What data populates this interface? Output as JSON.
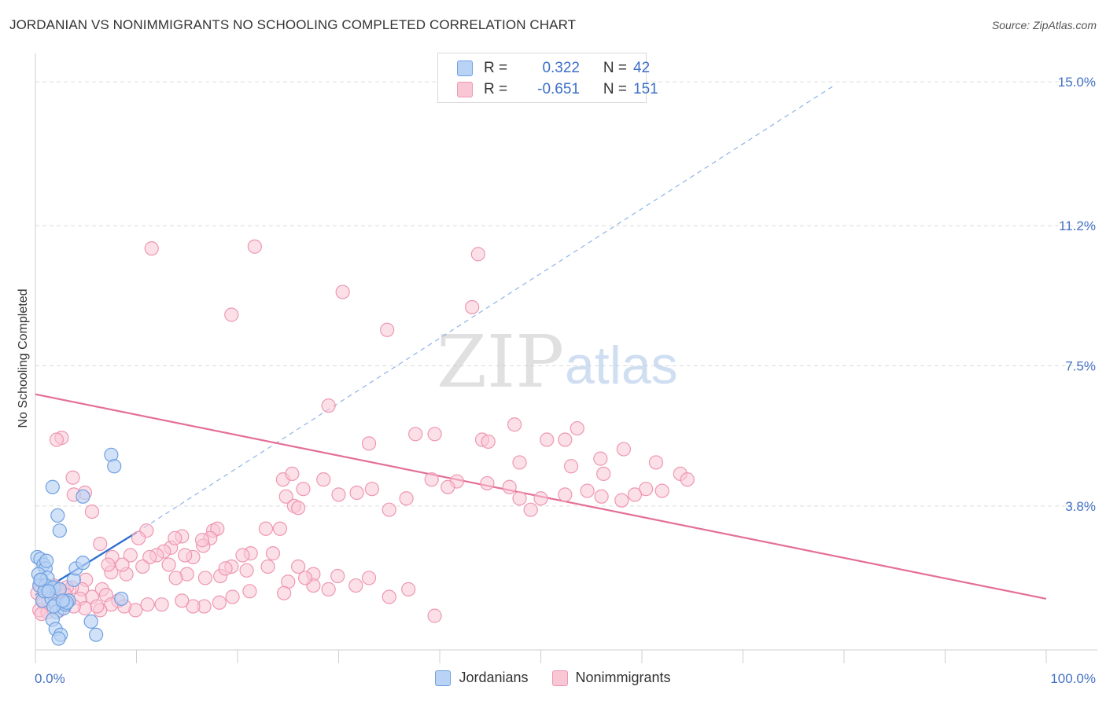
{
  "header": {
    "title": "JORDANIAN VS NONIMMIGRANTS NO SCHOOLING COMPLETED CORRELATION CHART",
    "source": "Source: ZipAtlas.com"
  },
  "watermark": {
    "part1": "ZIP",
    "part2": "atlas"
  },
  "legend": {
    "jordanians": {
      "r_label": "R =",
      "r_value": "0.322",
      "n_label": "N =",
      "n_value": "42"
    },
    "nonimmigrants": {
      "r_label": "R =",
      "r_value": "-0.651",
      "n_label": "N =",
      "n_value": "151"
    }
  },
  "bottom_legend": {
    "series1": "Jordanians",
    "series2": "Nonimmigrants"
  },
  "colors": {
    "jordanians_fill": "#b8d3f5",
    "jordanians_stroke": "#6fa0e0",
    "jordanians_line": "#2f6fd0",
    "nonimmigrants_fill": "#f9c6d5",
    "nonimmigrants_stroke": "#ee97b2",
    "nonimmigrants_line": "#e46f97",
    "tick_label": "#4472c4",
    "grid": "#dcdcdc"
  },
  "chart_data": {
    "type": "scatter",
    "title": "JORDANIAN VS NONIMMIGRANTS NO SCHOOLING COMPLETED CORRELATION CHART",
    "xlabel": "",
    "ylabel": "No Schooling Completed",
    "xlim": [
      0,
      100
    ],
    "ylim": [
      0,
      15.5
    ],
    "x_tick_labels": [
      "0.0%",
      "100.0%"
    ],
    "y_ticks": [
      3.8,
      7.5,
      11.2,
      15.0
    ],
    "y_tick_labels": [
      "3.8%",
      "7.5%",
      "11.2%",
      "15.0%"
    ],
    "grid": true,
    "legend_placement": "top-center",
    "series": [
      {
        "name": "Jordanians",
        "r": 0.322,
        "n": 42,
        "trend": {
          "x0": 0,
          "y0": 1.45,
          "x1": 10,
          "y1": 3.1,
          "dashed_extension_to": [
            79,
            14.9
          ]
        },
        "points": [
          [
            0.2,
            2.45
          ],
          [
            0.5,
            2.4
          ],
          [
            0.8,
            2.25
          ],
          [
            1.0,
            2.15
          ],
          [
            0.3,
            2.0
          ],
          [
            0.6,
            1.85
          ],
          [
            0.4,
            1.7
          ],
          [
            1.2,
            1.9
          ],
          [
            1.5,
            1.65
          ],
          [
            1.0,
            1.7
          ],
          [
            1.8,
            1.65
          ],
          [
            0.7,
            1.3
          ],
          [
            1.6,
            1.35
          ],
          [
            2.0,
            1.2
          ],
          [
            2.4,
            1.6
          ],
          [
            2.1,
            1.0
          ],
          [
            1.7,
            0.8
          ],
          [
            2.0,
            0.55
          ],
          [
            2.5,
            0.4
          ],
          [
            2.8,
            1.1
          ],
          [
            3.3,
            1.3
          ],
          [
            3.0,
            1.2
          ],
          [
            3.8,
            1.85
          ],
          [
            4.0,
            2.15
          ],
          [
            4.7,
            2.3
          ],
          [
            5.5,
            0.75
          ],
          [
            6.0,
            0.4
          ],
          [
            1.8,
            1.15
          ],
          [
            2.3,
            0.3
          ],
          [
            1.7,
            4.3
          ],
          [
            2.2,
            3.55
          ],
          [
            2.4,
            3.15
          ],
          [
            4.7,
            4.05
          ],
          [
            7.5,
            5.15
          ],
          [
            7.8,
            4.85
          ],
          [
            8.5,
            1.35
          ],
          [
            3.1,
            1.25
          ],
          [
            0.9,
            1.55
          ],
          [
            0.5,
            1.85
          ],
          [
            1.3,
            1.55
          ],
          [
            2.7,
            1.3
          ],
          [
            1.1,
            2.35
          ]
        ]
      },
      {
        "name": "Nonimmigrants",
        "r": -0.651,
        "n": 151,
        "trend": {
          "x0": 0,
          "y0": 6.75,
          "x1": 100,
          "y1": 1.35
        },
        "points": [
          [
            11.5,
            10.6
          ],
          [
            21.7,
            10.65
          ],
          [
            19.4,
            8.85
          ],
          [
            30.4,
            9.45
          ],
          [
            43.8,
            10.45
          ],
          [
            43.2,
            9.05
          ],
          [
            34.8,
            8.45
          ],
          [
            29.0,
            6.45
          ],
          [
            47.4,
            5.95
          ],
          [
            53.6,
            5.85
          ],
          [
            50.6,
            5.55
          ],
          [
            52.4,
            5.55
          ],
          [
            58.2,
            5.3
          ],
          [
            55.9,
            5.05
          ],
          [
            39.5,
            5.7
          ],
          [
            37.6,
            5.7
          ],
          [
            33.0,
            5.45
          ],
          [
            44.2,
            5.55
          ],
          [
            44.8,
            5.5
          ],
          [
            47.9,
            4.95
          ],
          [
            53.0,
            4.85
          ],
          [
            56.2,
            4.65
          ],
          [
            61.4,
            4.95
          ],
          [
            63.8,
            4.65
          ],
          [
            64.5,
            4.5
          ],
          [
            62.0,
            4.2
          ],
          [
            60.4,
            4.25
          ],
          [
            59.3,
            4.1
          ],
          [
            58.0,
            3.95
          ],
          [
            56.0,
            4.05
          ],
          [
            54.6,
            4.2
          ],
          [
            52.4,
            4.1
          ],
          [
            50.0,
            4.0
          ],
          [
            49.0,
            3.7
          ],
          [
            47.9,
            4.0
          ],
          [
            46.9,
            4.3
          ],
          [
            44.7,
            4.4
          ],
          [
            41.7,
            4.45
          ],
          [
            40.8,
            4.3
          ],
          [
            39.2,
            4.5
          ],
          [
            36.7,
            4.0
          ],
          [
            35.0,
            3.7
          ],
          [
            33.3,
            4.25
          ],
          [
            31.8,
            4.15
          ],
          [
            30.0,
            4.1
          ],
          [
            28.5,
            4.5
          ],
          [
            26.5,
            4.25
          ],
          [
            24.5,
            4.5
          ],
          [
            25.4,
            4.65
          ],
          [
            24.8,
            4.05
          ],
          [
            25.6,
            3.8
          ],
          [
            26.0,
            3.75
          ],
          [
            24.2,
            3.2
          ],
          [
            22.8,
            3.2
          ],
          [
            23.5,
            2.55
          ],
          [
            21.3,
            2.55
          ],
          [
            20.5,
            2.5
          ],
          [
            19.4,
            2.2
          ],
          [
            18.3,
            1.95
          ],
          [
            16.8,
            1.9
          ],
          [
            15.0,
            2.0
          ],
          [
            13.9,
            1.9
          ],
          [
            13.4,
            2.7
          ],
          [
            11.0,
            3.15
          ],
          [
            10.2,
            2.95
          ],
          [
            9.4,
            2.5
          ],
          [
            7.6,
            2.45
          ],
          [
            6.4,
            2.8
          ],
          [
            5.6,
            3.65
          ],
          [
            4.9,
            4.15
          ],
          [
            3.8,
            4.1
          ],
          [
            3.7,
            4.55
          ],
          [
            2.6,
            5.6
          ],
          [
            2.1,
            5.55
          ],
          [
            17.6,
            3.15
          ],
          [
            18.0,
            3.2
          ],
          [
            17.3,
            2.95
          ],
          [
            16.6,
            2.75
          ],
          [
            16.5,
            2.9
          ],
          [
            14.5,
            3.0
          ],
          [
            13.8,
            2.95
          ],
          [
            12.7,
            2.6
          ],
          [
            12.0,
            2.5
          ],
          [
            11.3,
            2.45
          ],
          [
            10.6,
            2.2
          ],
          [
            9.0,
            2.0
          ],
          [
            8.6,
            2.25
          ],
          [
            7.5,
            2.05
          ],
          [
            7.2,
            2.25
          ],
          [
            6.6,
            1.6
          ],
          [
            5.0,
            1.85
          ],
          [
            4.6,
            1.6
          ],
          [
            3.6,
            1.65
          ],
          [
            2.8,
            1.55
          ],
          [
            3.1,
            1.65
          ],
          [
            1.8,
            1.7
          ],
          [
            1.7,
            1.55
          ],
          [
            1.6,
            1.4
          ],
          [
            1.4,
            1.65
          ],
          [
            0.5,
            1.7
          ],
          [
            0.2,
            1.5
          ],
          [
            36.9,
            1.6
          ],
          [
            33.0,
            1.9
          ],
          [
            29.9,
            1.95
          ],
          [
            27.5,
            2.0
          ],
          [
            26.0,
            2.2
          ],
          [
            23.0,
            2.2
          ],
          [
            20.9,
            2.1
          ],
          [
            18.8,
            2.15
          ],
          [
            15.6,
            2.45
          ],
          [
            14.8,
            2.5
          ],
          [
            13.2,
            2.25
          ],
          [
            8.2,
            1.3
          ],
          [
            7.0,
            1.45
          ],
          [
            5.6,
            1.4
          ],
          [
            4.4,
            1.35
          ],
          [
            3.0,
            1.45
          ],
          [
            2.3,
            1.55
          ],
          [
            1.3,
            1.3
          ],
          [
            0.8,
            1.25
          ],
          [
            0.4,
            1.05
          ],
          [
            39.5,
            0.9
          ],
          [
            35.0,
            1.4
          ],
          [
            31.7,
            1.7
          ],
          [
            29.0,
            1.6
          ],
          [
            27.5,
            1.7
          ],
          [
            26.7,
            1.9
          ],
          [
            25.0,
            1.8
          ],
          [
            24.6,
            1.5
          ],
          [
            21.2,
            1.55
          ],
          [
            19.5,
            1.4
          ],
          [
            18.2,
            1.25
          ],
          [
            16.7,
            1.15
          ],
          [
            15.6,
            1.15
          ],
          [
            14.5,
            1.3
          ],
          [
            12.5,
            1.2
          ],
          [
            11.1,
            1.2
          ],
          [
            9.9,
            1.05
          ],
          [
            8.8,
            1.15
          ],
          [
            7.5,
            1.2
          ],
          [
            6.4,
            1.05
          ],
          [
            6.1,
            1.15
          ],
          [
            4.9,
            1.1
          ],
          [
            3.8,
            1.15
          ],
          [
            2.4,
            1.05
          ],
          [
            1.2,
            1.0
          ],
          [
            0.6,
            0.95
          ]
        ]
      }
    ]
  }
}
